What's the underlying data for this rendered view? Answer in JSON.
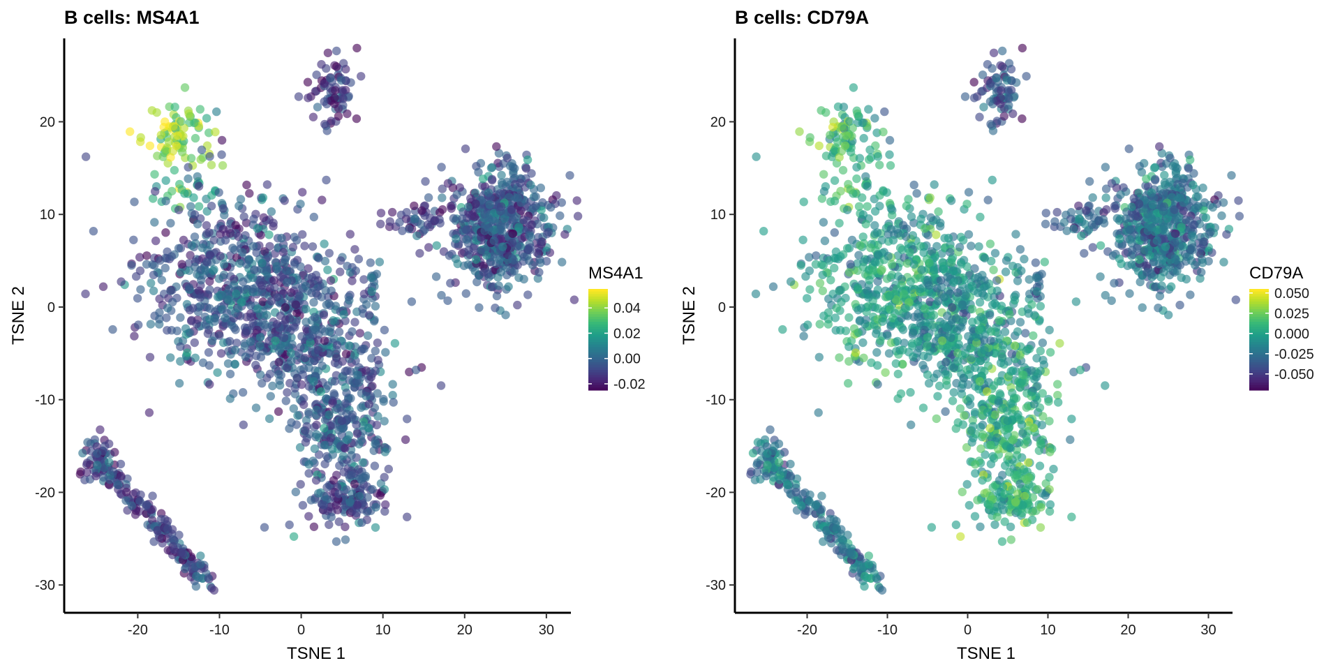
{
  "colors": {
    "viridis": [
      "#440154",
      "#482878",
      "#3e4a89",
      "#31688e",
      "#26828e",
      "#1f9e89",
      "#35b779",
      "#6ece58",
      "#b5de2b",
      "#fde725"
    ],
    "axis": "#000000",
    "background": "#ffffff"
  },
  "chart_data": [
    {
      "type": "scatter",
      "title": "B cells: MS4A1",
      "xlabel": "TSNE 1",
      "ylabel": "TSNE 2",
      "xlim": [
        -29,
        33
      ],
      "ylim": [
        -33,
        29
      ],
      "xticks": [
        -20,
        -10,
        0,
        10,
        20,
        30
      ],
      "yticks": [
        -30,
        -20,
        -10,
        0,
        10,
        20
      ],
      "x_tick_labels": [
        "-20",
        "-10",
        "0",
        "10",
        "20",
        "30"
      ],
      "y_tick_labels": [
        "-30",
        "-20",
        "-10",
        "0",
        "10",
        "20"
      ],
      "grid": false,
      "color_scale": "viridis",
      "legend": {
        "title": "MS4A1",
        "position": "right",
        "range": [
          -0.025,
          0.055
        ],
        "ticks": [
          0.04,
          0.02,
          0.0,
          -0.02
        ],
        "tick_labels": [
          "0.04",
          "0.02",
          "0.00",
          "-0.02"
        ]
      },
      "clusters": [
        {
          "name": "upper-left-bright",
          "center": [
            -15,
            18.5
          ],
          "spread": [
            2.2,
            2.0
          ],
          "n": 85,
          "level": 0.85
        },
        {
          "name": "upper-left-bridge",
          "center": [
            -15,
            12
          ],
          "spread": [
            2.5,
            1.5
          ],
          "n": 28,
          "level": 0.6
        },
        {
          "name": "main-body",
          "center": [
            -9,
            3
          ],
          "spread": [
            5.5,
            5
          ],
          "n": 520,
          "level": 0.25
        },
        {
          "name": "main-diagonal",
          "center": [
            0,
            -2
          ],
          "spread": [
            4.5,
            4
          ],
          "n": 380,
          "level": 0.28
        },
        {
          "name": "lower-extension",
          "center": [
            5,
            -12
          ],
          "spread": [
            3.2,
            5
          ],
          "n": 340,
          "level": 0.28
        },
        {
          "name": "lower-tip",
          "center": [
            6,
            -20.5
          ],
          "spread": [
            2.2,
            1.6
          ],
          "n": 110,
          "level": 0.2
        },
        {
          "name": "top-small",
          "center": [
            4,
            23
          ],
          "spread": [
            1.4,
            2.0
          ],
          "n": 75,
          "level": 0.15
        },
        {
          "name": "right-blob",
          "center": [
            24.5,
            8.5
          ],
          "spread": [
            3.2,
            3.4
          ],
          "n": 560,
          "level": 0.25
        },
        {
          "name": "right-neck",
          "center": [
            14,
            9.5
          ],
          "spread": [
            2.2,
            0.9
          ],
          "n": 45,
          "level": 0.18
        },
        {
          "name": "bottom-left-stream",
          "line": [
            [
              -25,
              -16
            ],
            [
              -11,
              -30
            ]
          ],
          "spread": 0.7,
          "n": 180,
          "level": 0.2
        },
        {
          "name": "bottom-left-head",
          "center": [
            -25,
            -16.5
          ],
          "spread": [
            1.2,
            1.2
          ],
          "n": 40,
          "level": 0.22
        },
        {
          "name": "mid-stripe",
          "center": [
            8.5,
            2.5
          ],
          "spread": [
            0.4,
            1.5
          ],
          "n": 12,
          "level": 0.3
        }
      ]
    },
    {
      "type": "scatter",
      "title": "B cells: CD79A",
      "xlabel": "TSNE 1",
      "ylabel": "TSNE 2",
      "xlim": [
        -29,
        33
      ],
      "ylim": [
        -33,
        29
      ],
      "xticks": [
        -20,
        -10,
        0,
        10,
        20,
        30
      ],
      "yticks": [
        -30,
        -20,
        -10,
        0,
        10,
        20
      ],
      "x_tick_labels": [
        "-20",
        "-10",
        "0",
        "10",
        "20",
        "30"
      ],
      "y_tick_labels": [
        "-30",
        "-20",
        "-10",
        "0",
        "10",
        "20"
      ],
      "grid": false,
      "color_scale": "viridis",
      "legend": {
        "title": "CD79A",
        "position": "right",
        "range": [
          -0.07,
          0.055
        ],
        "ticks": [
          0.05,
          0.025,
          0.0,
          -0.025,
          -0.05
        ],
        "tick_labels": [
          "0.050",
          "0.025",
          "0.000",
          "-0.025",
          "-0.050"
        ]
      },
      "clusters": [
        {
          "name": "upper-left-bright",
          "center": [
            -15,
            18.5
          ],
          "spread": [
            2.2,
            2.0
          ],
          "n": 85,
          "level": 0.68
        },
        {
          "name": "upper-left-bridge",
          "center": [
            -15,
            12
          ],
          "spread": [
            2.5,
            1.5
          ],
          "n": 28,
          "level": 0.65
        },
        {
          "name": "main-body",
          "center": [
            -9,
            3
          ],
          "spread": [
            5.5,
            5
          ],
          "n": 520,
          "level": 0.55
        },
        {
          "name": "main-diagonal",
          "center": [
            0,
            -2
          ],
          "spread": [
            4.5,
            4
          ],
          "n": 380,
          "level": 0.5
        },
        {
          "name": "lower-extension",
          "center": [
            5,
            -12
          ],
          "spread": [
            3.2,
            5
          ],
          "n": 340,
          "level": 0.6
        },
        {
          "name": "lower-tip",
          "center": [
            6,
            -20.5
          ],
          "spread": [
            2.2,
            1.6
          ],
          "n": 110,
          "level": 0.62
        },
        {
          "name": "top-small",
          "center": [
            4,
            23
          ],
          "spread": [
            1.4,
            2.0
          ],
          "n": 75,
          "level": 0.25
        },
        {
          "name": "right-blob",
          "center": [
            24.5,
            8.5
          ],
          "spread": [
            3.2,
            3.4
          ],
          "n": 560,
          "level": 0.35
        },
        {
          "name": "right-neck",
          "center": [
            14,
            9.5
          ],
          "spread": [
            2.2,
            0.9
          ],
          "n": 45,
          "level": 0.32
        },
        {
          "name": "bottom-left-stream",
          "line": [
            [
              -25,
              -16
            ],
            [
              -11,
              -30
            ]
          ],
          "spread": 0.7,
          "n": 180,
          "level": 0.4
        },
        {
          "name": "bottom-left-head",
          "center": [
            -25,
            -16.5
          ],
          "spread": [
            1.2,
            1.2
          ],
          "n": 40,
          "level": 0.42
        },
        {
          "name": "mid-stripe",
          "center": [
            8.5,
            2.5
          ],
          "spread": [
            0.4,
            1.5
          ],
          "n": 12,
          "level": 0.3
        }
      ]
    }
  ]
}
